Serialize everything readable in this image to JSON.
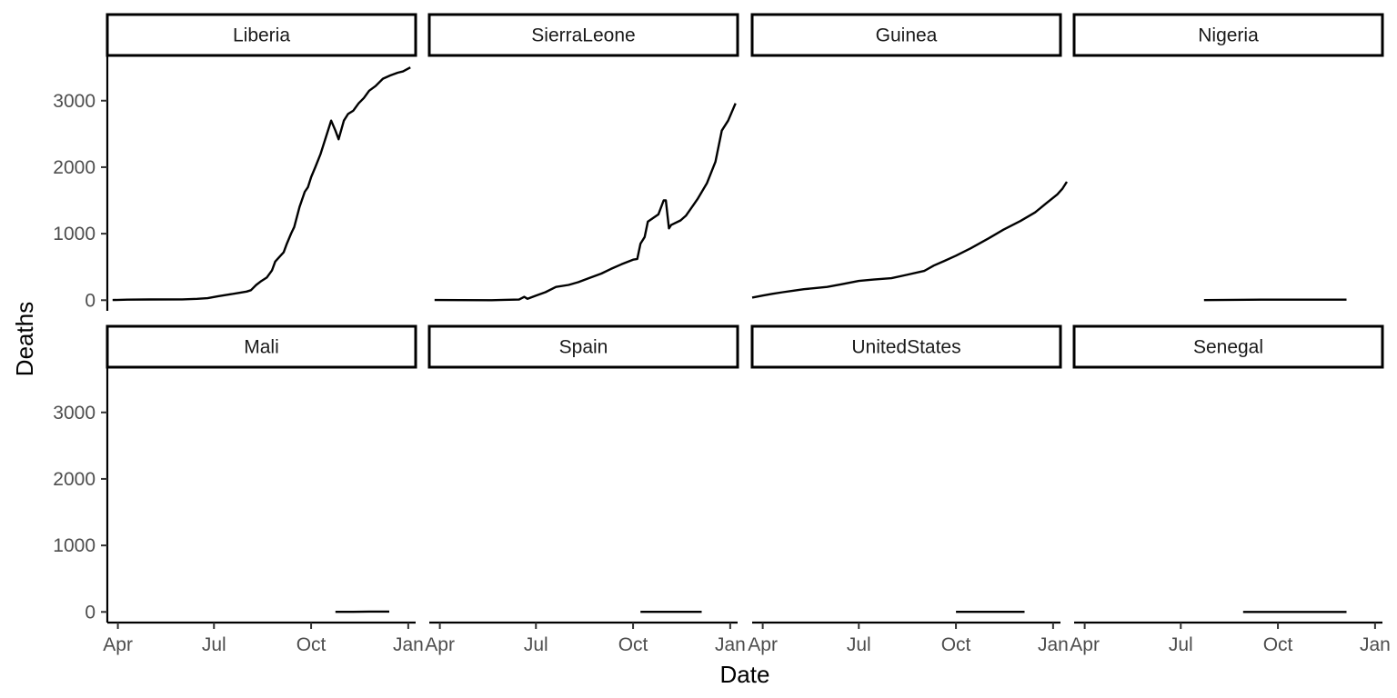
{
  "chart_data": {
    "type": "line",
    "facet_layout": "2 rows x 4 columns, shared axes",
    "xlabel": "Date",
    "ylabel": "Deaths",
    "x_ticks": [
      {
        "date": "2014-04-01",
        "label": "Apr"
      },
      {
        "date": "2014-07-01",
        "label": "Jul"
      },
      {
        "date": "2014-10-01",
        "label": "Oct"
      },
      {
        "date": "2015-01-01",
        "label": "Jan"
      }
    ],
    "xlim": [
      "2014-03-22",
      "2015-01-08"
    ],
    "y_ticks": [
      0,
      1000,
      2000,
      3000
    ],
    "ylim": [
      -160,
      3680
    ],
    "grid": false,
    "series_color": "#000000",
    "facets": [
      {
        "name": "Liberia",
        "points": [
          [
            "2014-03-27",
            3
          ],
          [
            "2014-04-10",
            8
          ],
          [
            "2014-05-01",
            11
          ],
          [
            "2014-06-01",
            12
          ],
          [
            "2014-06-15",
            20
          ],
          [
            "2014-06-25",
            30
          ],
          [
            "2014-07-05",
            60
          ],
          [
            "2014-07-15",
            85
          ],
          [
            "2014-07-25",
            110
          ],
          [
            "2014-08-01",
            130
          ],
          [
            "2014-08-05",
            150
          ],
          [
            "2014-08-10",
            230
          ],
          [
            "2014-08-15",
            290
          ],
          [
            "2014-08-20",
            340
          ],
          [
            "2014-08-25",
            450
          ],
          [
            "2014-08-28",
            580
          ],
          [
            "2014-09-01",
            650
          ],
          [
            "2014-09-05",
            720
          ],
          [
            "2014-09-08",
            850
          ],
          [
            "2014-09-12",
            1000
          ],
          [
            "2014-09-15",
            1100
          ],
          [
            "2014-09-20",
            1400
          ],
          [
            "2014-09-25",
            1630
          ],
          [
            "2014-09-28",
            1700
          ],
          [
            "2014-10-01",
            1850
          ],
          [
            "2014-10-05",
            2000
          ],
          [
            "2014-10-10",
            2200
          ],
          [
            "2014-10-15",
            2450
          ],
          [
            "2014-10-20",
            2700
          ],
          [
            "2014-10-24",
            2550
          ],
          [
            "2014-10-27",
            2420
          ],
          [
            "2014-11-01",
            2700
          ],
          [
            "2014-11-05",
            2800
          ],
          [
            "2014-11-10",
            2850
          ],
          [
            "2014-11-15",
            2960
          ],
          [
            "2014-11-20",
            3040
          ],
          [
            "2014-11-25",
            3150
          ],
          [
            "2014-12-01",
            3220
          ],
          [
            "2014-12-08",
            3330
          ],
          [
            "2014-12-15",
            3380
          ],
          [
            "2014-12-22",
            3420
          ],
          [
            "2014-12-27",
            3440
          ],
          [
            "2015-01-03",
            3500
          ]
        ]
      },
      {
        "name": "SierraLeone",
        "points": [
          [
            "2014-03-27",
            2
          ],
          [
            "2014-04-20",
            1
          ],
          [
            "2014-05-20",
            0
          ],
          [
            "2014-06-01",
            5
          ],
          [
            "2014-06-15",
            10
          ],
          [
            "2014-06-20",
            50
          ],
          [
            "2014-06-23",
            20
          ],
          [
            "2014-07-01",
            70
          ],
          [
            "2014-07-10",
            120
          ],
          [
            "2014-07-20",
            200
          ],
          [
            "2014-08-01",
            230
          ],
          [
            "2014-08-10",
            270
          ],
          [
            "2014-08-20",
            330
          ],
          [
            "2014-09-01",
            400
          ],
          [
            "2014-09-10",
            470
          ],
          [
            "2014-09-20",
            540
          ],
          [
            "2014-10-01",
            610
          ],
          [
            "2014-10-05",
            620
          ],
          [
            "2014-10-08",
            850
          ],
          [
            "2014-10-12",
            950
          ],
          [
            "2014-10-15",
            1180
          ],
          [
            "2014-10-25",
            1290
          ],
          [
            "2014-10-30",
            1500
          ],
          [
            "2014-11-01",
            1500
          ],
          [
            "2014-11-04",
            1080
          ],
          [
            "2014-11-06",
            1130
          ],
          [
            "2014-11-15",
            1200
          ],
          [
            "2014-11-20",
            1270
          ],
          [
            "2014-12-01",
            1520
          ],
          [
            "2014-12-10",
            1760
          ],
          [
            "2014-12-18",
            2080
          ],
          [
            "2014-12-24",
            2550
          ],
          [
            "2014-12-30",
            2700
          ],
          [
            "2015-01-06",
            2960
          ]
        ]
      },
      {
        "name": "Guinea",
        "points": [
          [
            "2014-03-22",
            40
          ],
          [
            "2014-04-01",
            70
          ],
          [
            "2014-04-10",
            95
          ],
          [
            "2014-04-20",
            120
          ],
          [
            "2014-05-01",
            145
          ],
          [
            "2014-05-10",
            165
          ],
          [
            "2014-05-20",
            180
          ],
          [
            "2014-06-01",
            200
          ],
          [
            "2014-06-15",
            240
          ],
          [
            "2014-07-01",
            290
          ],
          [
            "2014-07-15",
            310
          ],
          [
            "2014-08-01",
            330
          ],
          [
            "2014-08-15",
            380
          ],
          [
            "2014-09-01",
            440
          ],
          [
            "2014-09-10",
            520
          ],
          [
            "2014-09-20",
            590
          ],
          [
            "2014-10-01",
            670
          ],
          [
            "2014-10-15",
            780
          ],
          [
            "2014-11-01",
            930
          ],
          [
            "2014-11-15",
            1060
          ],
          [
            "2014-12-01",
            1190
          ],
          [
            "2014-12-15",
            1320
          ],
          [
            "2014-12-25",
            1450
          ],
          [
            "2015-01-05",
            1590
          ],
          [
            "2015-01-10",
            1680
          ],
          [
            "2015-01-14",
            1780
          ]
        ]
      },
      {
        "name": "Nigeria",
        "points": [
          [
            "2014-07-23",
            1
          ],
          [
            "2014-08-20",
            5
          ],
          [
            "2014-09-15",
            8
          ],
          [
            "2014-10-15",
            8
          ],
          [
            "2014-11-15",
            8
          ],
          [
            "2014-12-05",
            8
          ]
        ]
      },
      {
        "name": "Mali",
        "points": [
          [
            "2014-10-24",
            1
          ],
          [
            "2014-11-10",
            1
          ],
          [
            "2014-11-25",
            6
          ],
          [
            "2014-12-14",
            6
          ]
        ]
      },
      {
        "name": "Spain",
        "points": [
          [
            "2014-10-08",
            1
          ],
          [
            "2014-12-05",
            1
          ]
        ]
      },
      {
        "name": "UnitedStates",
        "points": [
          [
            "2014-10-01",
            1
          ],
          [
            "2014-11-15",
            1
          ],
          [
            "2014-12-05",
            1
          ]
        ]
      },
      {
        "name": "Senegal",
        "points": [
          [
            "2014-08-29",
            0
          ],
          [
            "2014-12-05",
            0
          ]
        ]
      }
    ]
  }
}
